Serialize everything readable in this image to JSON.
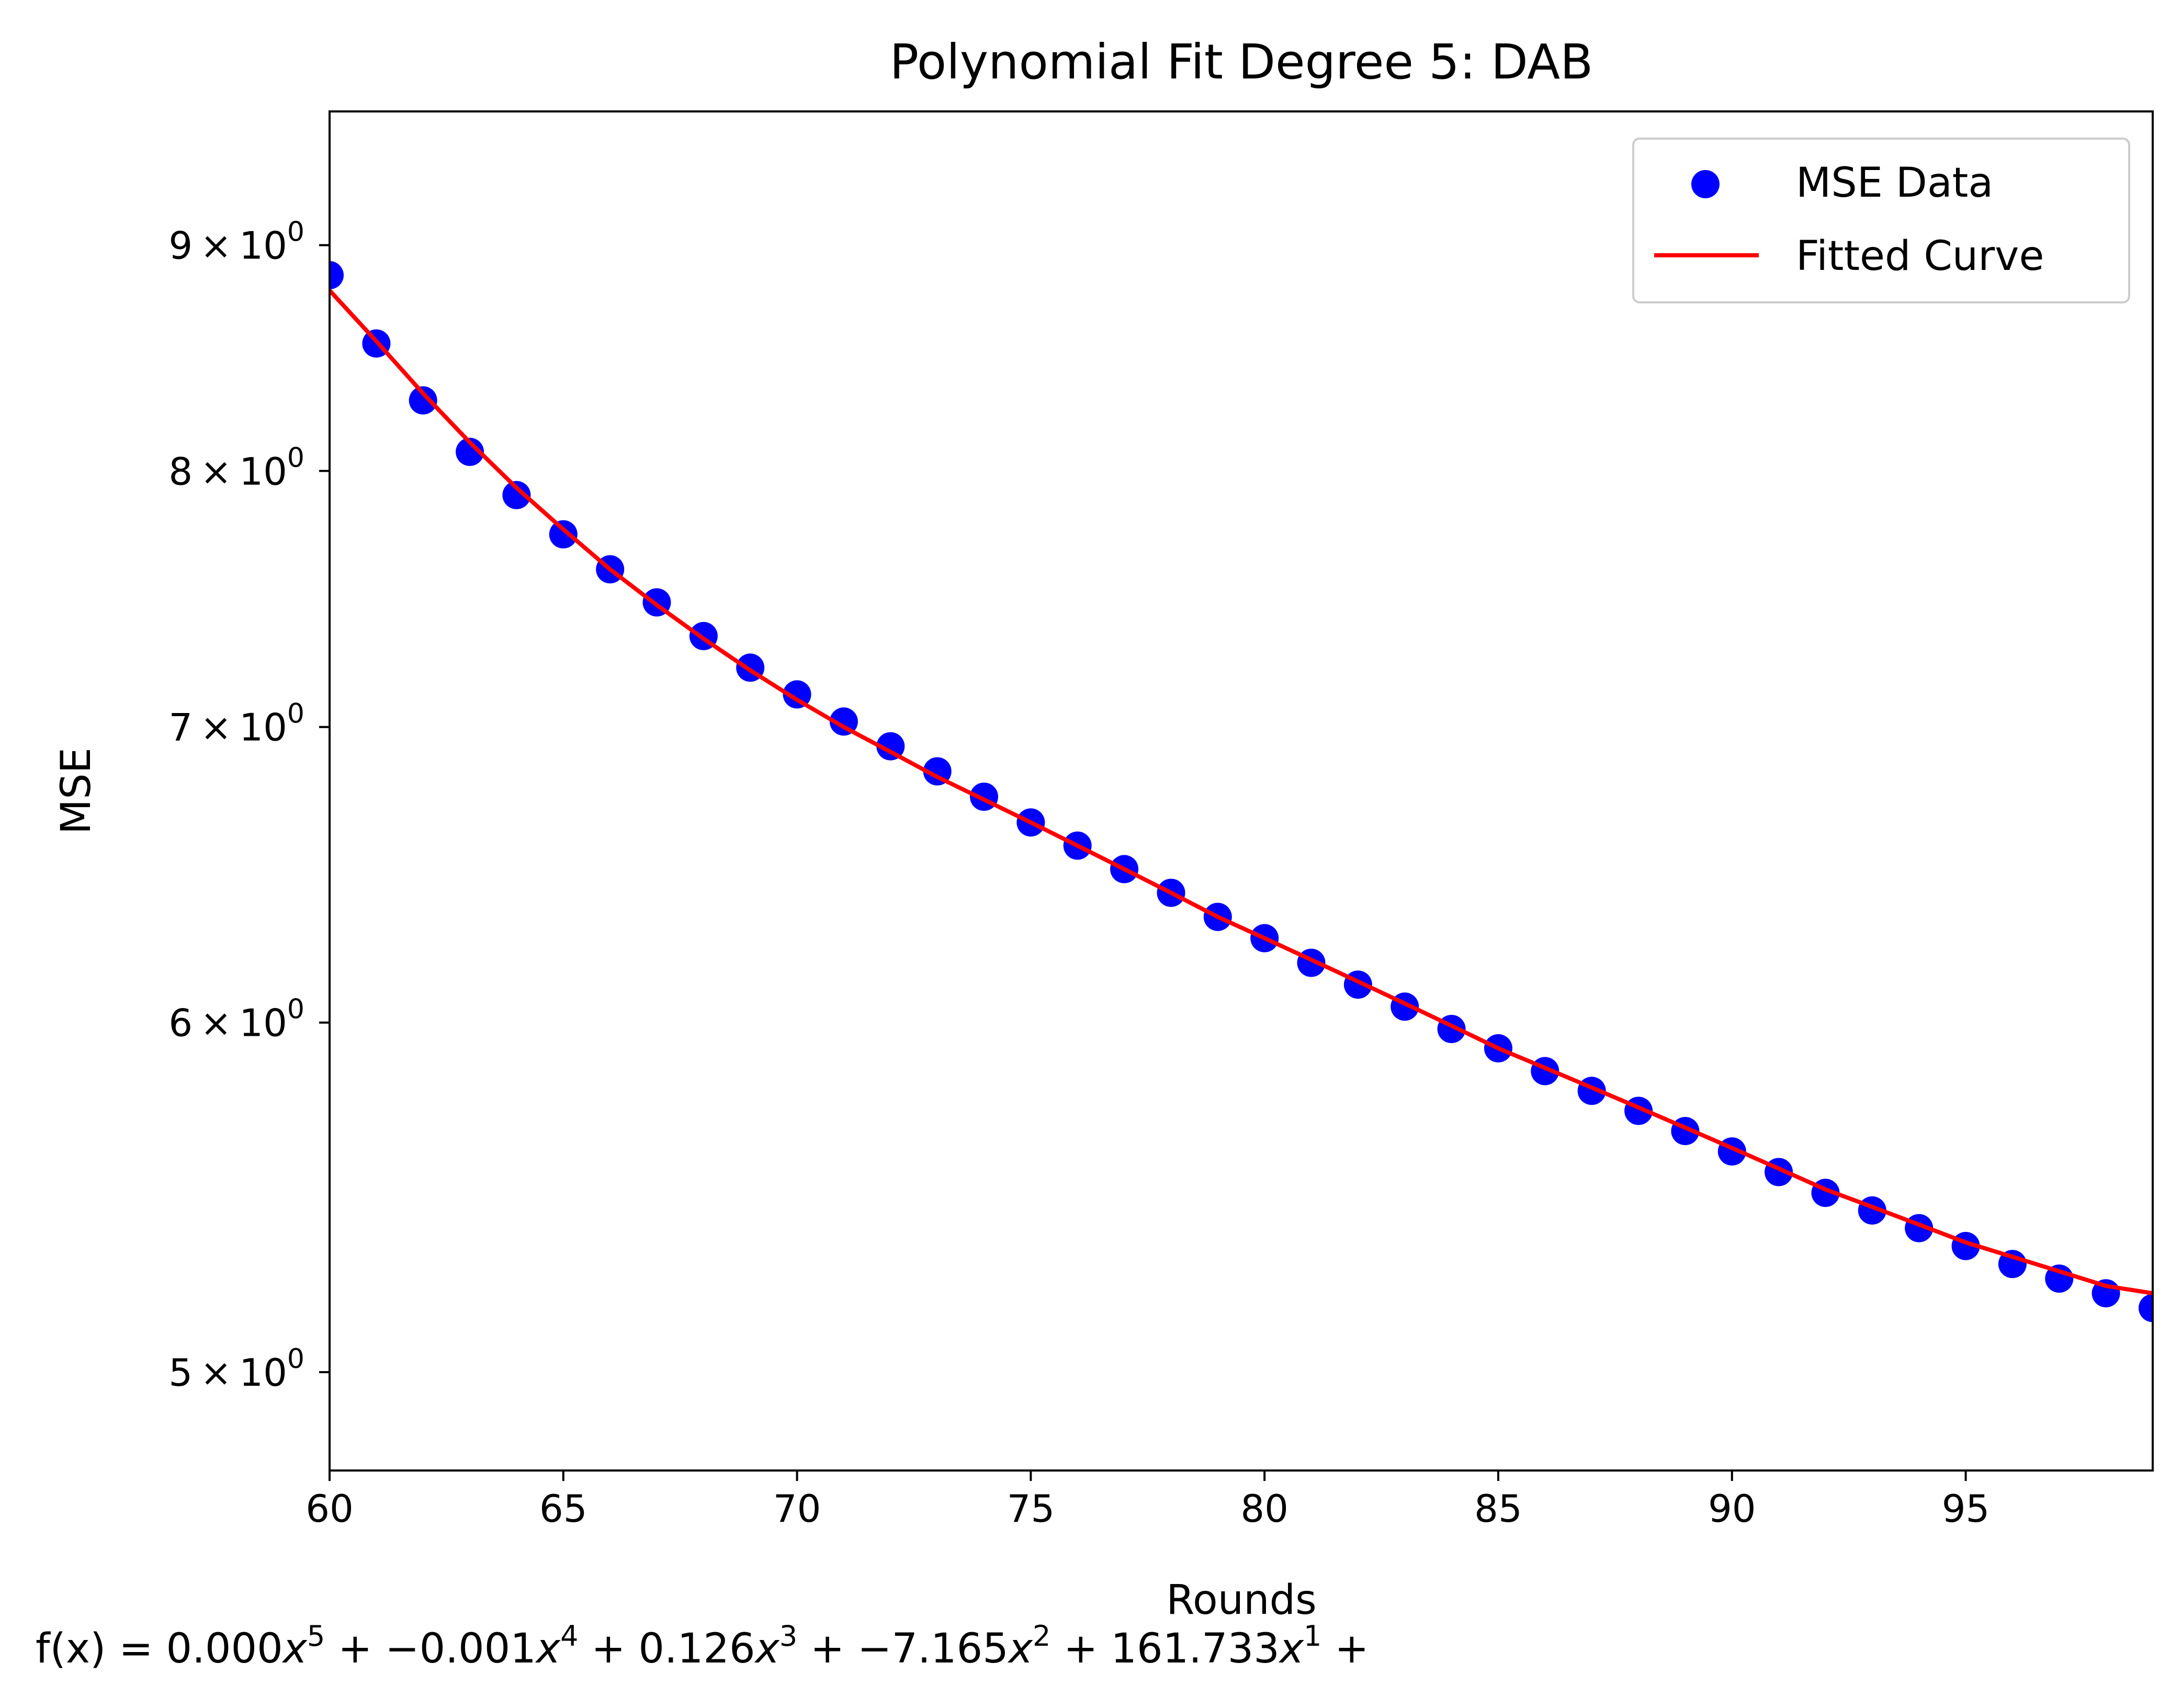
{
  "chart_data": {
    "type": "scatter",
    "title": "Polynomial Fit Degree 5: DAB",
    "xlabel": "Rounds",
    "ylabel": "MSE",
    "xlim": [
      60,
      99
    ],
    "ylim": [
      4.75,
      9.65
    ],
    "yscale": "log",
    "grid": false,
    "legend_position": "top-right",
    "x_ticks": [
      60,
      65,
      70,
      75,
      80,
      85,
      90,
      95
    ],
    "y_ticks": [
      {
        "value": 5,
        "mantissa": "5",
        "base": "10",
        "exp": "0"
      },
      {
        "value": 6,
        "mantissa": "6",
        "base": "10",
        "exp": "0"
      },
      {
        "value": 7,
        "mantissa": "7",
        "base": "10",
        "exp": "0"
      },
      {
        "value": 8,
        "mantissa": "8",
        "base": "10",
        "exp": "0"
      },
      {
        "value": 9,
        "mantissa": "9",
        "base": "10",
        "exp": "0"
      }
    ],
    "series": [
      {
        "name": "MSE Data",
        "type": "scatter",
        "color": "#0000ff",
        "x": [
          60,
          61,
          62,
          63,
          64,
          65,
          66,
          67,
          68,
          69,
          70,
          71,
          72,
          73,
          74,
          75,
          76,
          77,
          78,
          79,
          80,
          81,
          82,
          83,
          84,
          85,
          86,
          87,
          88,
          89,
          90,
          91,
          92,
          93,
          94,
          95,
          96,
          97,
          98,
          99
        ],
        "y": [
          8.86,
          8.55,
          8.3,
          8.08,
          7.9,
          7.74,
          7.6,
          7.47,
          7.34,
          7.22,
          7.12,
          7.02,
          6.93,
          6.84,
          6.75,
          6.66,
          6.58,
          6.5,
          6.42,
          6.34,
          6.27,
          6.19,
          6.12,
          6.05,
          5.98,
          5.92,
          5.85,
          5.79,
          5.73,
          5.67,
          5.61,
          5.55,
          5.49,
          5.44,
          5.39,
          5.34,
          5.29,
          5.25,
          5.21,
          5.17
        ]
      },
      {
        "name": "Fitted Curve",
        "type": "line",
        "color": "#ff0000",
        "x": [
          60,
          61,
          62,
          63,
          64,
          65,
          66,
          67,
          68,
          69,
          70,
          71,
          72,
          73,
          74,
          75,
          76,
          77,
          78,
          79,
          80,
          81,
          82,
          83,
          84,
          85,
          86,
          87,
          88,
          89,
          90,
          91,
          92,
          93,
          94,
          95,
          96,
          97,
          98,
          99
        ],
        "y": [
          8.79,
          8.56,
          8.33,
          8.12,
          7.93,
          7.76,
          7.6,
          7.46,
          7.33,
          7.21,
          7.1,
          7.0,
          6.91,
          6.82,
          6.74,
          6.66,
          6.58,
          6.5,
          6.42,
          6.34,
          6.27,
          6.2,
          6.13,
          6.06,
          5.99,
          5.92,
          5.86,
          5.8,
          5.74,
          5.68,
          5.62,
          5.56,
          5.5,
          5.45,
          5.4,
          5.35,
          5.31,
          5.27,
          5.23,
          5.21
        ]
      }
    ],
    "formula": {
      "prefix": "f(x) = ",
      "terms": [
        {
          "coef": "0.000",
          "var": "x",
          "exp": "5",
          "sep": " + "
        },
        {
          "coef": "−0.001",
          "var": "x",
          "exp": "4",
          "sep": " + "
        },
        {
          "coef": "0.126",
          "var": "x",
          "exp": "3",
          "sep": " + "
        },
        {
          "coef": "−7.165",
          "var": "x",
          "exp": "2",
          "sep": " + "
        },
        {
          "coef": "161.733",
          "var": "x",
          "exp": "1",
          "sep": " +"
        }
      ]
    }
  }
}
